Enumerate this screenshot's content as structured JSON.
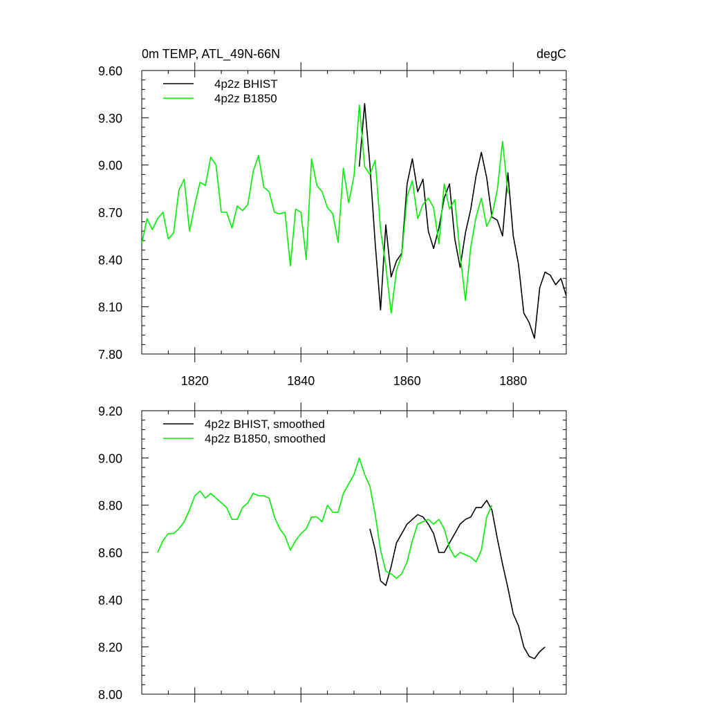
{
  "chart_data": [
    {
      "type": "line",
      "title": "0m TEMP, ATL_49N-66N",
      "units": "degC",
      "xlim": [
        1810,
        1890
      ],
      "ylim": [
        7.8,
        9.6
      ],
      "yticks": [
        "9.60",
        "9.30",
        "9.00",
        "8.70",
        "8.40",
        "8.10",
        "7.80"
      ],
      "xticks": [
        "1820",
        "1840",
        "1860",
        "1880"
      ],
      "series": [
        {
          "name": "4p2z BHIST",
          "color": "#000000",
          "x0": 1851,
          "values": [
            8.99,
            9.39,
            9.0,
            8.5,
            8.08,
            8.62,
            8.29,
            8.39,
            8.44,
            8.88,
            9.04,
            8.83,
            8.91,
            8.58,
            8.47,
            8.6,
            8.79,
            8.88,
            8.53,
            8.35,
            8.57,
            8.72,
            8.93,
            9.08,
            8.92,
            8.67,
            8.65,
            8.55,
            8.95,
            8.55,
            8.37,
            8.06,
            8.0,
            7.9,
            8.22,
            8.32,
            8.3,
            8.24,
            8.28,
            8.17
          ]
        },
        {
          "name": "4p2z B1850",
          "color": "#00ee00",
          "x0": 1810,
          "values": [
            8.5,
            8.66,
            8.59,
            8.66,
            8.7,
            8.53,
            8.57,
            8.84,
            8.91,
            8.58,
            8.75,
            8.89,
            8.87,
            9.05,
            9.0,
            8.7,
            8.7,
            8.6,
            8.74,
            8.71,
            8.75,
            8.96,
            9.06,
            8.86,
            8.83,
            8.7,
            8.69,
            8.7,
            8.36,
            8.72,
            8.7,
            8.4,
            9.04,
            8.87,
            8.83,
            8.73,
            8.69,
            8.51,
            8.98,
            8.76,
            8.93,
            9.38,
            8.99,
            8.94,
            9.03,
            8.59,
            8.36,
            8.06,
            8.33,
            8.43,
            8.8,
            8.9,
            8.66,
            8.75,
            8.79,
            8.73,
            8.5,
            8.88,
            8.72,
            8.78,
            8.43,
            8.14,
            8.48,
            8.67,
            8.79,
            8.61,
            8.68,
            8.84,
            9.15,
            8.82
          ]
        }
      ]
    },
    {
      "type": "line",
      "title": "",
      "xlim": [
        1810,
        1890
      ],
      "ylim": [
        8.0,
        9.2
      ],
      "yticks": [
        "9.20",
        "9.00",
        "8.80",
        "8.60",
        "8.40",
        "8.20",
        "8.00"
      ],
      "xticks": [],
      "series": [
        {
          "name": "4p2z BHIST, smoothed",
          "color": "#000000",
          "x0": 1853,
          "values": [
            8.7,
            8.61,
            8.48,
            8.46,
            8.54,
            8.64,
            8.68,
            8.72,
            8.74,
            8.76,
            8.75,
            8.72,
            8.68,
            8.6,
            8.6,
            8.64,
            8.68,
            8.72,
            8.74,
            8.75,
            8.79,
            8.79,
            8.82,
            8.78,
            8.66,
            8.55,
            8.45,
            8.34,
            8.29,
            8.2,
            8.16,
            8.15,
            8.18,
            8.2
          ]
        },
        {
          "name": "4p2z B1850, smoothed",
          "color": "#00ee00",
          "x0": 1813,
          "values": [
            8.6,
            8.65,
            8.68,
            8.68,
            8.7,
            8.73,
            8.78,
            8.84,
            8.86,
            8.83,
            8.85,
            8.83,
            8.81,
            8.79,
            8.74,
            8.74,
            8.79,
            8.81,
            8.85,
            8.84,
            8.84,
            8.83,
            8.75,
            8.7,
            8.67,
            8.61,
            8.65,
            8.68,
            8.7,
            8.75,
            8.75,
            8.73,
            8.8,
            8.77,
            8.77,
            8.85,
            8.89,
            8.93,
            9.0,
            8.93,
            8.88,
            8.76,
            8.61,
            8.52,
            8.51,
            8.49,
            8.51,
            8.56,
            8.65,
            8.72,
            8.73,
            8.74,
            8.72,
            8.74,
            8.7,
            8.62,
            8.58,
            8.6,
            8.59,
            8.58,
            8.56,
            8.61,
            8.75,
            8.8
          ]
        }
      ]
    }
  ]
}
